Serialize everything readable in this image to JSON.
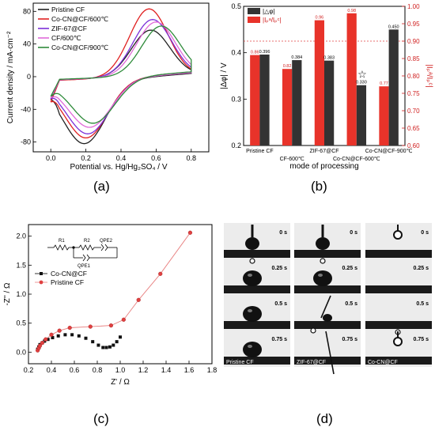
{
  "captions": {
    "a": "(a)",
    "b": "(b)",
    "c": "(c)",
    "d": "(d)"
  },
  "colors": {
    "black": "#222222",
    "red": "#e02020",
    "violet": "#7b2fd8",
    "pink": "#e06ad8",
    "green": "#2e8b3a",
    "bar_black": "#333333",
    "bar_red": "#e8332a"
  },
  "chart_data": [
    {
      "id": "a",
      "type": "line",
      "xlabel": "Potential vs. Hg/Hg₂SO₄ / V",
      "ylabel": "Current density / mA·cm⁻²",
      "xlim": [
        -0.1,
        0.9
      ],
      "ylim": [
        -92,
        90
      ],
      "xticks": [
        0.0,
        0.2,
        0.4,
        0.6,
        0.8
      ],
      "yticks": [
        -80,
        -40,
        0,
        40,
        80
      ],
      "legend_position": "top-left",
      "series": [
        {
          "name": "Pristine CF",
          "color": "#222222",
          "peak_x": 0.57,
          "peak_y": 57,
          "trough_x": 0.19,
          "trough_y": -82,
          "start_y": -28,
          "end_y": 4
        },
        {
          "name": "Co-CN@CF/600℃",
          "color": "#e02020",
          "peak_x": 0.56,
          "peak_y": 83,
          "trough_x": 0.2,
          "trough_y": -75,
          "start_y": -31,
          "end_y": 5
        },
        {
          "name": "ZIF-67@CF",
          "color": "#7b2fd8",
          "peak_x": 0.58,
          "peak_y": 70,
          "trough_x": 0.21,
          "trough_y": -70,
          "start_y": -27,
          "end_y": 5
        },
        {
          "name": "CF/600℃",
          "color": "#e06ad8",
          "peak_x": 0.6,
          "peak_y": 67,
          "trough_x": 0.22,
          "trough_y": -62,
          "start_y": -26,
          "end_y": 5
        },
        {
          "name": "Co-CN@CF/900℃",
          "color": "#2e8b3a",
          "peak_x": 0.63,
          "peak_y": 62,
          "trough_x": 0.24,
          "trough_y": -57,
          "start_y": -24,
          "end_y": 6
        }
      ]
    },
    {
      "id": "b",
      "type": "bar",
      "xlabel": "mode of processing",
      "ylabel_left": "|Δφ| / V",
      "ylabel_right": "|Iₚᵃ/Iₚᶜ|",
      "ylim_left": [
        0.2,
        0.5
      ],
      "ylim_right": [
        0.6,
        1.0
      ],
      "yticks_left": [
        0.2,
        0.3,
        0.4,
        0.5
      ],
      "yticks_right": [
        0.6,
        0.65,
        0.7,
        0.75,
        0.8,
        0.85,
        0.9,
        0.95,
        1.0
      ],
      "reference_line_right": 0.9,
      "categories": [
        "Pristine CF",
        "CF-600℃",
        "ZIF-67@CF",
        "Co-CN@CF-600℃",
        "Co-CN@CF-900℃"
      ],
      "category_label_rows": [
        0,
        1,
        0,
        1,
        0
      ],
      "legend_entries": [
        "|△φ|",
        "|Iₚᵃ/Iₚᶜ|"
      ],
      "delta_phi": [
        0.396,
        0.384,
        0.383,
        0.33,
        0.45
      ],
      "delta_phi_labels": [
        "0.396",
        "0.384",
        "0.383",
        "0.330",
        "0.450"
      ],
      "ratio": [
        0.86,
        0.82,
        0.96,
        0.98,
        0.77
      ],
      "ratio_labels": [
        "0.86",
        "0.82",
        "0.96",
        "0.98",
        "0.77"
      ],
      "star_category": 3,
      "star_symbol": "☆"
    },
    {
      "id": "c",
      "type": "scatter",
      "xlabel": "Z' / Ω",
      "ylabel": "-Z'' / Ω",
      "xlim": [
        0.2,
        1.8
      ],
      "ylim": [
        -0.2,
        2.2
      ],
      "xticks": [
        0.2,
        0.4,
        0.6,
        0.8,
        1.0,
        1.2,
        1.4,
        1.6,
        1.8
      ],
      "yticks": [
        0.0,
        0.5,
        1.0,
        1.5,
        2.0
      ],
      "legend_position": "center-left",
      "circuit_labels": [
        "R1",
        "R2",
        "QPE2",
        "QPE1"
      ],
      "series": [
        {
          "name": "Co-CN@CF",
          "color": "#111111",
          "marker": "square",
          "x": [
            0.28,
            0.29,
            0.3,
            0.32,
            0.34,
            0.37,
            0.41,
            0.46,
            0.52,
            0.58,
            0.64,
            0.7,
            0.76,
            0.81,
            0.85,
            0.88,
            0.91,
            0.94,
            0.97,
            1.0
          ],
          "y": [
            0.05,
            0.09,
            0.13,
            0.16,
            0.19,
            0.22,
            0.25,
            0.28,
            0.3,
            0.3,
            0.28,
            0.24,
            0.18,
            0.12,
            0.08,
            0.08,
            0.09,
            0.12,
            0.18,
            0.26
          ]
        },
        {
          "name": "Pristine CF",
          "color": "#e04040",
          "marker": "circle",
          "x": [
            0.28,
            0.29,
            0.3,
            0.32,
            0.35,
            0.4,
            0.47,
            0.56,
            0.74,
            0.92,
            1.03,
            1.16,
            1.35,
            1.61
          ],
          "y": [
            0.03,
            0.07,
            0.11,
            0.16,
            0.22,
            0.3,
            0.37,
            0.42,
            0.44,
            0.46,
            0.56,
            0.9,
            1.35,
            2.06
          ]
        }
      ]
    }
  ],
  "droplets": {
    "columns": [
      {
        "label": "Pristine CF",
        "frames": [
          "0 s",
          "0.25 s",
          "0.5 s",
          "0.75 s"
        ],
        "stage": [
          "needle",
          "sit",
          "sit",
          "sit"
        ]
      },
      {
        "label": "ZIF-67@CF",
        "frames": [
          "0 s",
          "0.25 s",
          "0.5 s",
          "0.75 s"
        ],
        "stage": [
          "needle",
          "sit",
          "needle-small",
          "needle-tiny"
        ]
      },
      {
        "label": "Co-CN@CF",
        "frames": [
          "0 s",
          "0.25 s",
          "0.5 s",
          "0.75 s"
        ],
        "stage": [
          "hang",
          "empty",
          "hang-small",
          "hang"
        ]
      }
    ]
  }
}
